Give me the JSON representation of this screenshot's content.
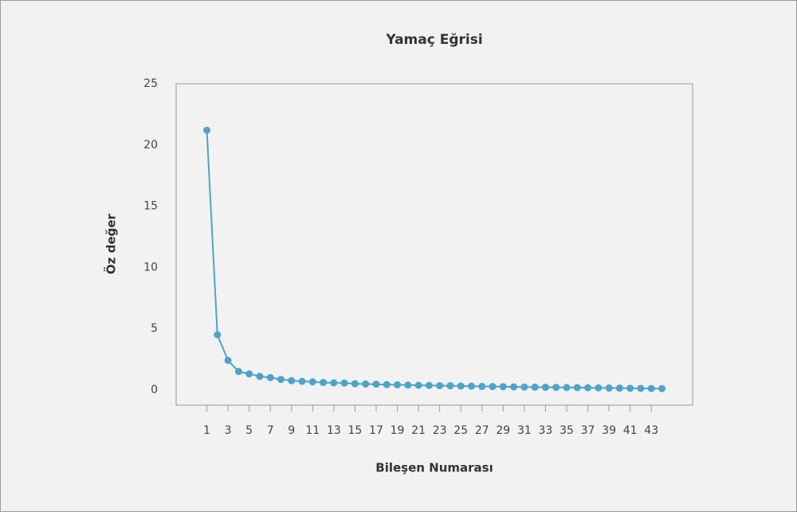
{
  "chart_data": {
    "type": "line",
    "title": "Yamaç Eğrisi",
    "x_label": "Bileşen Numarası",
    "y_label": "Öz değer",
    "x": [
      1,
      2,
      3,
      4,
      5,
      6,
      7,
      8,
      9,
      10,
      11,
      12,
      13,
      14,
      15,
      16,
      17,
      18,
      19,
      20,
      21,
      22,
      23,
      24,
      25,
      26,
      27,
      28,
      29,
      30,
      31,
      32,
      33,
      34,
      35,
      36,
      37,
      38,
      39,
      40,
      41,
      42,
      43,
      44
    ],
    "series": [
      {
        "name": "Öz değer",
        "color": "#4ea3c9",
        "values": [
          21.2,
          4.5,
          2.4,
          1.5,
          1.3,
          1.1,
          1.0,
          0.85,
          0.75,
          0.7,
          0.65,
          0.6,
          0.57,
          0.55,
          0.5,
          0.48,
          0.46,
          0.43,
          0.41,
          0.39,
          0.37,
          0.36,
          0.34,
          0.33,
          0.31,
          0.3,
          0.28,
          0.27,
          0.26,
          0.24,
          0.23,
          0.22,
          0.21,
          0.2,
          0.19,
          0.18,
          0.17,
          0.16,
          0.15,
          0.14,
          0.13,
          0.12,
          0.11,
          0.1
        ]
      }
    ],
    "xlim": [
      -1.9,
      46.9
    ],
    "xticks": [
      1,
      3,
      5,
      7,
      9,
      11,
      13,
      15,
      17,
      19,
      21,
      23,
      25,
      27,
      29,
      31,
      33,
      35,
      37,
      39,
      41,
      43
    ],
    "ylim": [
      -1.25,
      25
    ],
    "yticks": [
      0,
      5,
      10,
      15,
      20,
      25
    ],
    "grid": false
  }
}
